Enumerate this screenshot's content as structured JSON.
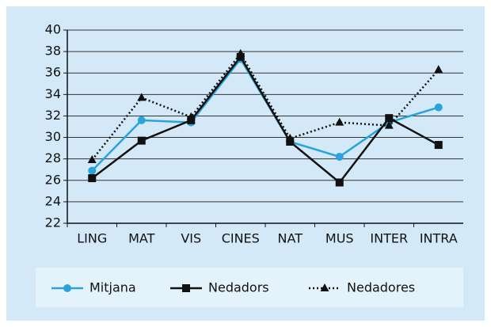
{
  "chart_data": {
    "type": "line",
    "categories": [
      "LING",
      "MAT",
      "VIS",
      "CINES",
      "NAT",
      "MUS",
      "INTER",
      "INTRA"
    ],
    "series": [
      {
        "name": "Mitjana",
        "color": "#29a3dc",
        "marker": "circle",
        "line_style": "solid",
        "values": [
          26.9,
          31.6,
          31.4,
          37.3,
          29.6,
          28.2,
          31.4,
          32.8
        ]
      },
      {
        "name": "Nedadors",
        "color": "#111111",
        "marker": "square",
        "line_style": "solid",
        "values": [
          26.2,
          29.7,
          31.6,
          37.5,
          29.6,
          25.8,
          31.8,
          29.3
        ]
      },
      {
        "name": "Nedadores",
        "color": "#111111",
        "marker": "triangle",
        "line_style": "dotted",
        "values": [
          27.9,
          33.7,
          31.9,
          37.8,
          29.9,
          31.4,
          31.1,
          36.3
        ]
      }
    ],
    "ylim": [
      22,
      40
    ],
    "yticks": [
      22,
      24,
      26,
      28,
      30,
      32,
      34,
      36,
      38,
      40
    ],
    "grid": true,
    "legend": "bottom"
  }
}
